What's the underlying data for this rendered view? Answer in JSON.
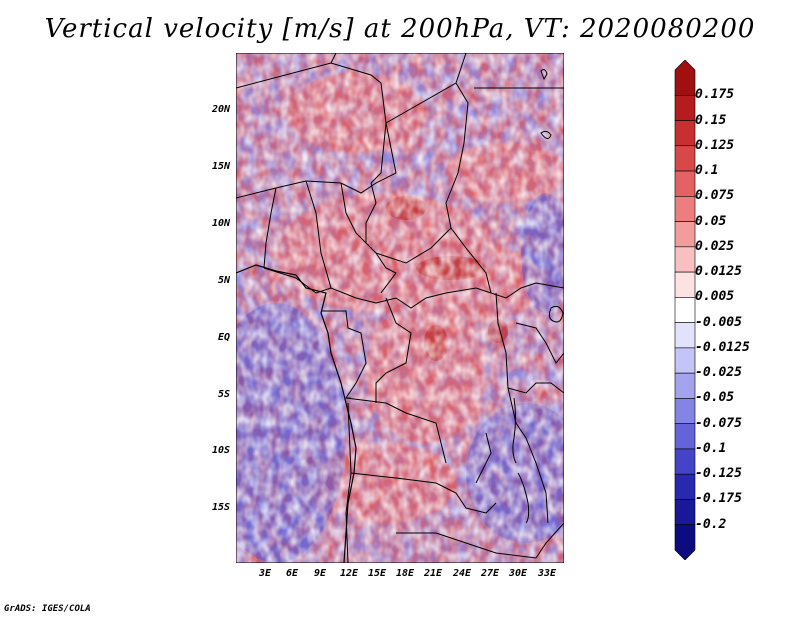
{
  "title": "Vertical velocity [m/s] at 200hPa, VT: 2020080200",
  "footer": "GrADS: IGES/COLA",
  "lat_labels": [
    "20N",
    "15N",
    "10N",
    "5N",
    "EQ",
    "5S",
    "10S",
    "15S"
  ],
  "lon_labels": [
    "3E",
    "6E",
    "9E",
    "12E",
    "15E",
    "18E",
    "21E",
    "24E",
    "27E",
    "30E",
    "33E"
  ],
  "colorbar": {
    "labels": [
      "0.175",
      "0.15",
      "0.125",
      "0.1",
      "0.075",
      "0.05",
      "0.025",
      "0.0125",
      "0.005",
      "-0.005",
      "-0.0125",
      "-0.025",
      "-0.05",
      "-0.075",
      "-0.1",
      "-0.125",
      "-0.175",
      "-0.2"
    ],
    "colors": [
      "#a01010",
      "#b51c1c",
      "#c83030",
      "#d84848",
      "#e46262",
      "#ec7e7e",
      "#f29c9c",
      "#f8c0c0",
      "#fce2e2",
      "#ffffff",
      "#e2e2fc",
      "#c4c4f6",
      "#a4a4ee",
      "#8484e4",
      "#6464d8",
      "#4444c8",
      "#2828b0",
      "#181898",
      "#0c0c80"
    ]
  }
}
